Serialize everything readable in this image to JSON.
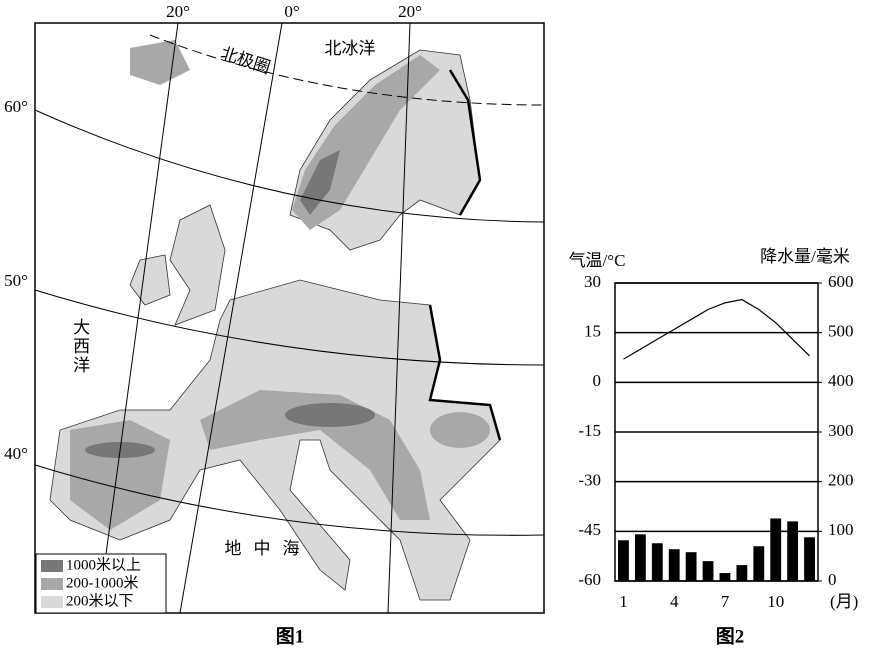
{
  "map": {
    "meridian_labels": [
      "20°",
      "0°",
      "20°"
    ],
    "parallel_labels": [
      "60°",
      "50°",
      "40°"
    ],
    "places": [
      "北冰洋",
      "北极圈",
      "大西洋",
      "地中海"
    ],
    "legend": [
      "1000米以上",
      "200-1000米",
      "200米以下"
    ],
    "caption": "图1"
  },
  "chart_data": {
    "type": "combo",
    "caption": "图2",
    "y_label": "气温/°C",
    "y2_label": "降水量/毫米",
    "x_label": "(月)",
    "categories": [
      1,
      null,
      null,
      4,
      null,
      null,
      7,
      null,
      null,
      10,
      null,
      null
    ],
    "ylim": [
      -60,
      30
    ],
    "yticks": [
      30,
      15,
      0,
      -15,
      -30,
      -45,
      -60
    ],
    "y2lim": [
      0,
      600
    ],
    "y2ticks": [
      600,
      500,
      400,
      300,
      200,
      100,
      0
    ],
    "grid": true,
    "series": [
      {
        "type": "line",
        "color": "#000000",
        "values": [
          7,
          10,
          13,
          16,
          19,
          22,
          24,
          25,
          22,
          18,
          13,
          8
        ]
      },
      {
        "type": "bar",
        "axis": "y2",
        "color": "#000000",
        "values": [
          82,
          94,
          76,
          64,
          58,
          40,
          16,
          32,
          70,
          126,
          120,
          88
        ]
      }
    ]
  }
}
